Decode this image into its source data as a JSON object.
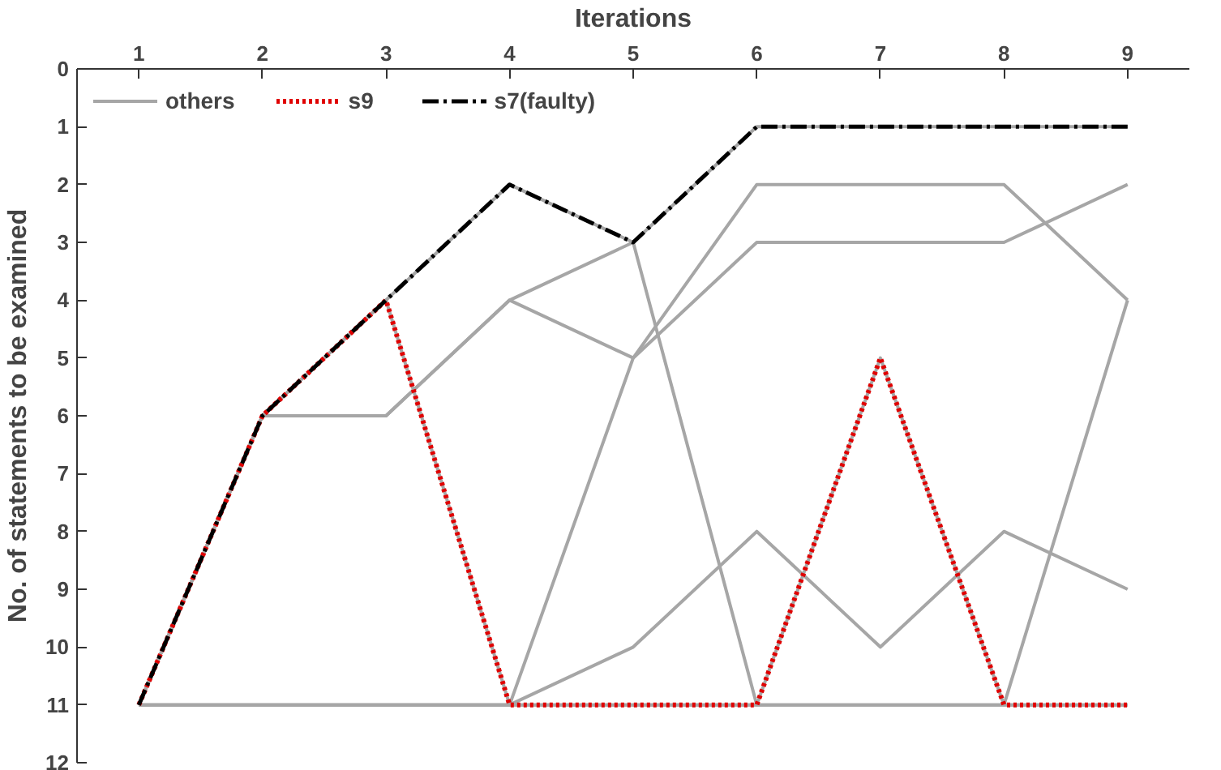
{
  "chart_data": {
    "type": "line",
    "xlabel": "Iterations",
    "ylabel": "No. of statements to be examined",
    "x": [
      1,
      2,
      3,
      4,
      5,
      6,
      7,
      8,
      9
    ],
    "xlim": [
      0.5,
      9.5
    ],
    "xticks": [
      1,
      2,
      3,
      4,
      5,
      6,
      7,
      8,
      9
    ],
    "ylim": [
      12,
      0
    ],
    "yticks": [
      0,
      1,
      2,
      3,
      4,
      5,
      6,
      7,
      8,
      9,
      10,
      11,
      12
    ],
    "grid": false,
    "legend": "top left",
    "series": [
      {
        "name": "others",
        "color": "#a6a6a6",
        "line_style": "solid",
        "values": [
          11,
          6,
          6,
          4,
          5,
          2,
          2,
          2,
          4
        ]
      },
      {
        "color": "#a6a6a6",
        "line_style": "solid",
        "values": [
          11,
          6,
          6,
          4,
          3,
          11,
          11,
          11,
          4
        ]
      },
      {
        "color": "#a6a6a6",
        "line_style": "solid",
        "values": [
          11,
          11,
          11,
          11,
          5,
          3,
          3,
          3,
          2
        ]
      },
      {
        "color": "#a6a6a6",
        "line_style": "solid",
        "values": [
          11,
          11,
          11,
          11,
          10,
          8,
          10,
          8,
          9
        ]
      },
      {
        "color": "#a6a6a6",
        "line_style": "solid",
        "values": [
          11,
          11,
          11,
          11,
          11,
          11,
          11,
          11,
          11
        ]
      },
      {
        "color": "#a6a6a6",
        "line_style": "solid",
        "values": [
          11,
          6,
          4,
          11,
          11,
          11,
          5,
          11,
          11
        ]
      },
      {
        "color": "#a6a6a6",
        "line_style": "solid",
        "values": [
          11,
          6,
          4,
          2,
          3,
          1,
          1,
          1,
          1
        ]
      },
      {
        "name": "s9",
        "color": "#e00000",
        "line_style": "dotted",
        "values": [
          11,
          6,
          4,
          11,
          11,
          11,
          5,
          11,
          11
        ]
      },
      {
        "name": "s7(faulty)",
        "color": "#000000",
        "line_style": "dashed",
        "values": [
          11,
          6,
          4,
          2,
          3,
          1,
          1,
          1,
          1
        ]
      }
    ]
  }
}
